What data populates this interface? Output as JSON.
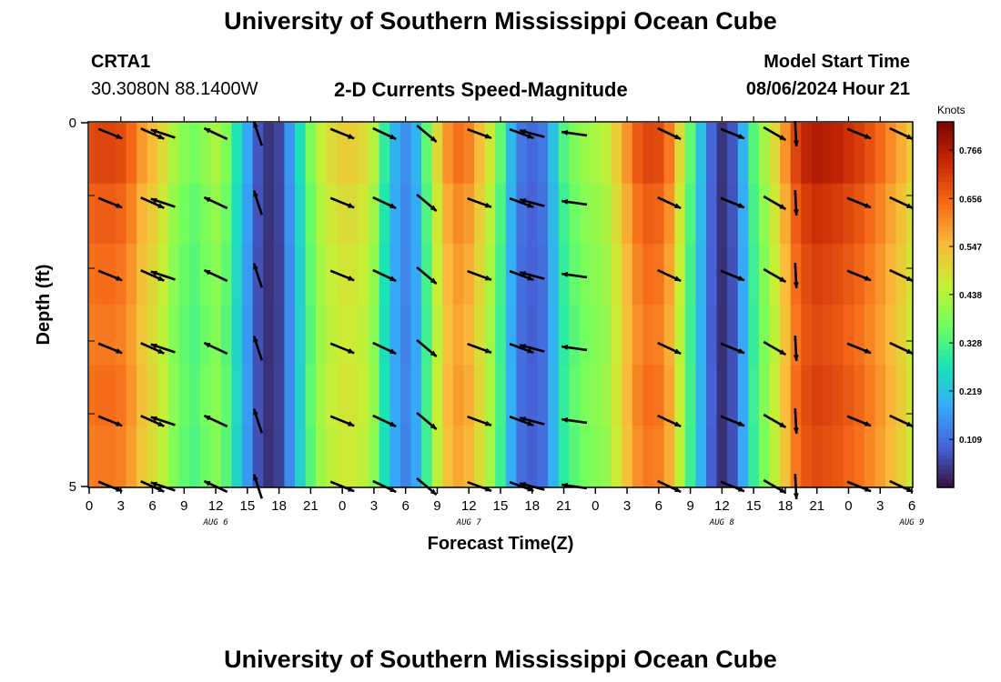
{
  "header": {
    "title": "University of Southern Mississippi Ocean Cube",
    "station": "CRTA1",
    "coords": "30.3080N  88.1400W",
    "chart_name": "2-D Currents Speed-Magnitude",
    "model_label": "Model Start Time",
    "model_time": "08/06/2024 Hour 21",
    "footer_title": "University of Southern Mississippi Ocean Cube"
  },
  "colors": {
    "scale": [
      "#30123b",
      "#4662d7",
      "#36aaf9",
      "#1ae4b6",
      "#72fe5e",
      "#c7ef34",
      "#faba39",
      "#f66b19",
      "#ca2a04",
      "#7a0403"
    ]
  },
  "chart_data": {
    "type": "heatmap",
    "title": "2-D Currents Speed-Magnitude",
    "xlabel": "Forecast Time(Z)",
    "ylabel": "Depth (ft)",
    "x_ticks": [
      "0",
      "3",
      "6",
      "9",
      "12",
      "15",
      "18",
      "21",
      "0",
      "3",
      "6",
      "9",
      "12",
      "15",
      "18",
      "21",
      "0",
      "3",
      "6",
      "9",
      "12",
      "15",
      "18",
      "21",
      "0",
      "3",
      "6"
    ],
    "x_groups": [
      {
        "label": "AUG 6",
        "hour": 12
      },
      {
        "label": "AUG 7",
        "hour": 36
      },
      {
        "label": "AUG 8",
        "hour": 60
      },
      {
        "label": "AUG 9",
        "hour": 78
      }
    ],
    "xlim_hours": [
      0,
      78
    ],
    "y_ticks": [
      "0",
      "5"
    ],
    "ylim": [
      0,
      5
    ],
    "colorbar": {
      "unit": "Knots",
      "range": [
        0,
        0.83
      ],
      "tick_values": [
        0.109,
        0.219,
        0.328,
        0.438,
        0.547,
        0.656,
        0.766
      ],
      "tick_labels": [
        "0.109",
        "0.219",
        "0.328",
        "0.438",
        "0.547",
        "0.656",
        "0.766"
      ]
    },
    "speed_by_hour": [
      0.69,
      0.7,
      0.7,
      0.69,
      0.65,
      0.59,
      0.55,
      0.5,
      0.43,
      0.39,
      0.37,
      0.4,
      0.43,
      0.38,
      0.28,
      0.18,
      0.08,
      0.04,
      0.06,
      0.16,
      0.27,
      0.38,
      0.46,
      0.5,
      0.52,
      0.52,
      0.5,
      0.44,
      0.3,
      0.2,
      0.15,
      0.2,
      0.35,
      0.5,
      0.6,
      0.64,
      0.62,
      0.55,
      0.47,
      0.35,
      0.21,
      0.12,
      0.1,
      0.12,
      0.22,
      0.33,
      0.38,
      0.41,
      0.43,
      0.45,
      0.52,
      0.6,
      0.67,
      0.7,
      0.69,
      0.63,
      0.5,
      0.35,
      0.22,
      0.1,
      0.04,
      0.08,
      0.2,
      0.34,
      0.42,
      0.5,
      0.6,
      0.7,
      0.75,
      0.77,
      0.76,
      0.75,
      0.73,
      0.71,
      0.68,
      0.65,
      0.61,
      0.57,
      0.52
    ],
    "depth_factor": [
      1.0,
      0.95,
      0.92,
      0.9,
      0.92,
      0.9
    ],
    "arrows": {
      "depths": [
        0.15,
        1.1,
        2.1,
        3.1,
        4.1,
        5.0
      ],
      "columns": [
        {
          "hour": 2,
          "dir": -22
        },
        {
          "hour": 6,
          "dir": -24
        },
        {
          "hour": 7,
          "dir": 162
        },
        {
          "hour": 12,
          "dir": 155
        },
        {
          "hour": 16,
          "dir": 108
        },
        {
          "hour": 24,
          "dir": -22
        },
        {
          "hour": 28,
          "dir": -25
        },
        {
          "hour": 32,
          "dir": -40
        },
        {
          "hour": 37,
          "dir": -20
        },
        {
          "hour": 41,
          "dir": -20
        },
        {
          "hour": 42,
          "dir": 165
        },
        {
          "hour": 46,
          "dir": 172
        },
        {
          "hour": 55,
          "dir": -25
        },
        {
          "hour": 61,
          "dir": -22
        },
        {
          "hour": 65,
          "dir": -30
        },
        {
          "hour": 67,
          "dir": -87
        },
        {
          "hour": 73,
          "dir": -22
        },
        {
          "hour": 77,
          "dir": -25
        }
      ]
    }
  }
}
